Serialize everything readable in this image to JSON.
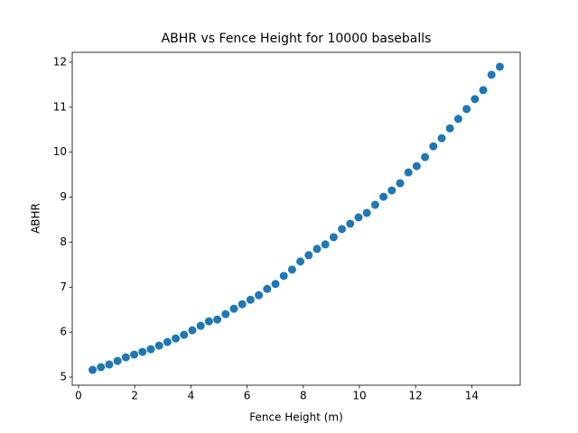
{
  "chart_data": {
    "type": "scatter",
    "title": "ABHR vs Fence Height for 10000 baseballs",
    "x_label": "Fence Height (m)",
    "y_label": "ABHR",
    "series": [
      {
        "color": "#1f77b4",
        "x": [
          0.5,
          0.796,
          1.092,
          1.388,
          1.684,
          1.98,
          2.276,
          2.571,
          2.867,
          3.163,
          3.459,
          3.755,
          4.051,
          4.347,
          4.643,
          4.939,
          5.235,
          5.531,
          5.827,
          6.122,
          6.418,
          6.714,
          7.01,
          7.306,
          7.602,
          7.898,
          8.194,
          8.49,
          8.786,
          9.082,
          9.378,
          9.673,
          9.969,
          10.265,
          10.561,
          10.857,
          11.153,
          11.449,
          11.745,
          12.041,
          12.337,
          12.633,
          12.929,
          13.224,
          13.52,
          13.816,
          14.112,
          14.408,
          14.704,
          15.0
        ],
        "values": [
          5.16,
          5.22,
          5.28,
          5.36,
          5.44,
          5.5,
          5.56,
          5.62,
          5.7,
          5.78,
          5.86,
          5.94,
          6.04,
          6.14,
          6.24,
          6.28,
          6.4,
          6.52,
          6.62,
          6.72,
          6.82,
          6.96,
          7.07,
          7.25,
          7.39,
          7.57,
          7.71,
          7.85,
          7.95,
          8.11,
          8.29,
          8.41,
          8.55,
          8.65,
          8.83,
          9.01,
          9.15,
          9.31,
          9.55,
          9.69,
          9.89,
          10.13,
          10.31,
          10.53,
          10.74,
          10.96,
          11.18,
          11.38,
          11.72,
          11.9
        ]
      }
    ],
    "xlim": [
      -0.225,
      15.725
    ],
    "xticks": [
      0,
      2,
      4,
      6,
      8,
      10,
      12,
      14
    ],
    "ylim": [
      4.82,
      12.22
    ],
    "yticks": [
      5,
      6,
      7,
      8,
      9,
      10,
      11,
      12
    ],
    "grid": false
  }
}
